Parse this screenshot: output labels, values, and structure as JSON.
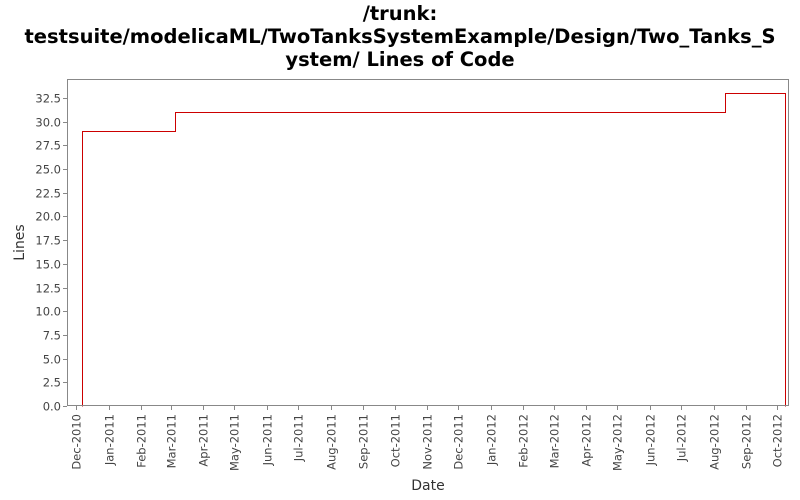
{
  "title_lines": [
    "/trunk:",
    "testsuite/modelicaML/TwoTanksSystemExample/Design/Two_Tanks_S",
    "ystem/ Lines of Code"
  ],
  "colors": {
    "series": "#cc0000",
    "frame": "#888888",
    "axis_text": "#444444"
  },
  "chart_data": {
    "type": "line",
    "step": true,
    "title": "/trunk: testsuite/modelicaML/TwoTanksSystemExample/Design/Two_Tanks_System/ Lines of Code",
    "xlabel": "Date",
    "ylabel": "Lines",
    "xlim": [
      "2010-11-22",
      "2012-10-12"
    ],
    "ylim": [
      0,
      34.5
    ],
    "y_ticks": [
      0.0,
      2.5,
      5.0,
      7.5,
      10.0,
      12.5,
      15.0,
      17.5,
      20.0,
      22.5,
      25.0,
      27.5,
      30.0,
      32.5
    ],
    "y_tick_labels": [
      "0.0",
      "2.5",
      "5.0",
      "7.5",
      "10.0",
      "12.5",
      "15.0",
      "17.5",
      "20.0",
      "22.5",
      "25.0",
      "27.5",
      "30.0",
      "32.5"
    ],
    "x_ticks": [
      "2010-12-01",
      "2011-01-01",
      "2011-02-01",
      "2011-03-01",
      "2011-04-01",
      "2011-05-01",
      "2011-06-01",
      "2011-07-01",
      "2011-08-01",
      "2011-09-01",
      "2011-10-01",
      "2011-11-01",
      "2011-12-01",
      "2012-01-01",
      "2012-02-01",
      "2012-03-01",
      "2012-04-01",
      "2012-05-01",
      "2012-06-01",
      "2012-07-01",
      "2012-08-01",
      "2012-09-01",
      "2012-10-01"
    ],
    "x_tick_labels": [
      "Dec-2010",
      "Jan-2011",
      "Feb-2011",
      "Mar-2011",
      "Apr-2011",
      "May-2011",
      "Jun-2011",
      "Jul-2011",
      "Aug-2011",
      "Sep-2011",
      "Oct-2011",
      "Nov-2011",
      "Dec-2011",
      "Jan-2012",
      "Feb-2012",
      "Mar-2012",
      "Apr-2012",
      "May-2012",
      "Jun-2012",
      "Jul-2012",
      "Aug-2012",
      "Sep-2012",
      "Oct-2012"
    ],
    "grid": false,
    "legend": "none",
    "series": [
      {
        "x": [
          "2010-12-06",
          "2010-12-06",
          "2011-03-05",
          "2011-03-05",
          "2012-08-12",
          "2012-08-12",
          "2012-10-08",
          "2012-10-08"
        ],
        "y": [
          0,
          29,
          29,
          31,
          31,
          33,
          33,
          0
        ]
      }
    ]
  }
}
